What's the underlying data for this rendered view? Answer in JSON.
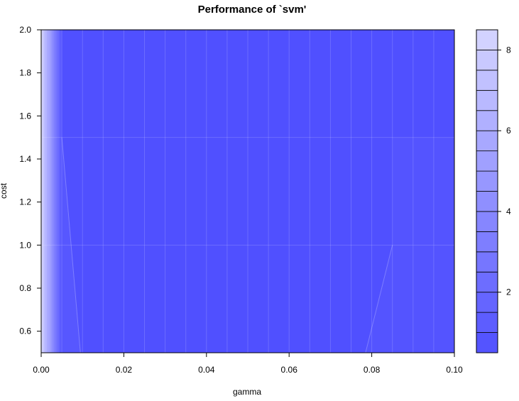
{
  "chart_data": {
    "type": "heatmap",
    "subtype": "filled-contour",
    "title": "Performance of `svm'",
    "xlabel": "gamma",
    "ylabel": "cost",
    "xlim": [
      0,
      0.1
    ],
    "ylim": [
      0.5,
      2.0
    ],
    "x_ticks": [
      0.0,
      0.02,
      0.04,
      0.06,
      0.08,
      0.1
    ],
    "x_tick_labels": [
      "0.00",
      "0.02",
      "0.04",
      "0.06",
      "0.08",
      "0.10"
    ],
    "y_ticks": [
      0.6,
      0.8,
      1.0,
      1.2,
      1.4,
      1.6,
      1.8,
      2.0
    ],
    "y_tick_labels": [
      "0.6",
      "0.8",
      "1.0",
      "1.2",
      "1.4",
      "1.6",
      "1.8",
      "2.0"
    ],
    "gamma_grid": [
      0.0,
      0.005,
      0.01,
      0.015,
      0.02,
      0.025,
      0.03,
      0.035,
      0.04,
      0.045,
      0.05,
      0.055,
      0.06,
      0.065,
      0.07,
      0.075,
      0.08,
      0.085,
      0.09,
      0.095,
      0.1
    ],
    "cost_grid": [
      0.5,
      1.0,
      1.5,
      2.0
    ],
    "colorbar": {
      "levels": [
        0.5,
        1,
        1.5,
        2,
        2.5,
        3,
        3.5,
        4,
        4.5,
        5,
        5.5,
        6,
        6.5,
        7,
        7.5,
        8,
        8.5
      ],
      "tick_values": [
        2,
        4,
        6,
        8
      ],
      "tick_labels": [
        "2",
        "4",
        "6",
        "8"
      ],
      "low_color": "#5050ff",
      "high_color": "#d6d6ff"
    },
    "regions": [
      {
        "desc": "high error near gamma 0",
        "gamma_range": [
          0.0,
          0.005
        ],
        "level_range": [
          1.0,
          8.5
        ]
      },
      {
        "desc": "bulk low error",
        "gamma_range": [
          0.005,
          0.085
        ],
        "level": 0.5
      },
      {
        "desc": "slightly higher error at large gamma, low cost",
        "gamma_range": [
          0.078,
          0.1
        ],
        "cost_range": [
          0.5,
          1.0
        ],
        "level": 1.0
      }
    ]
  }
}
